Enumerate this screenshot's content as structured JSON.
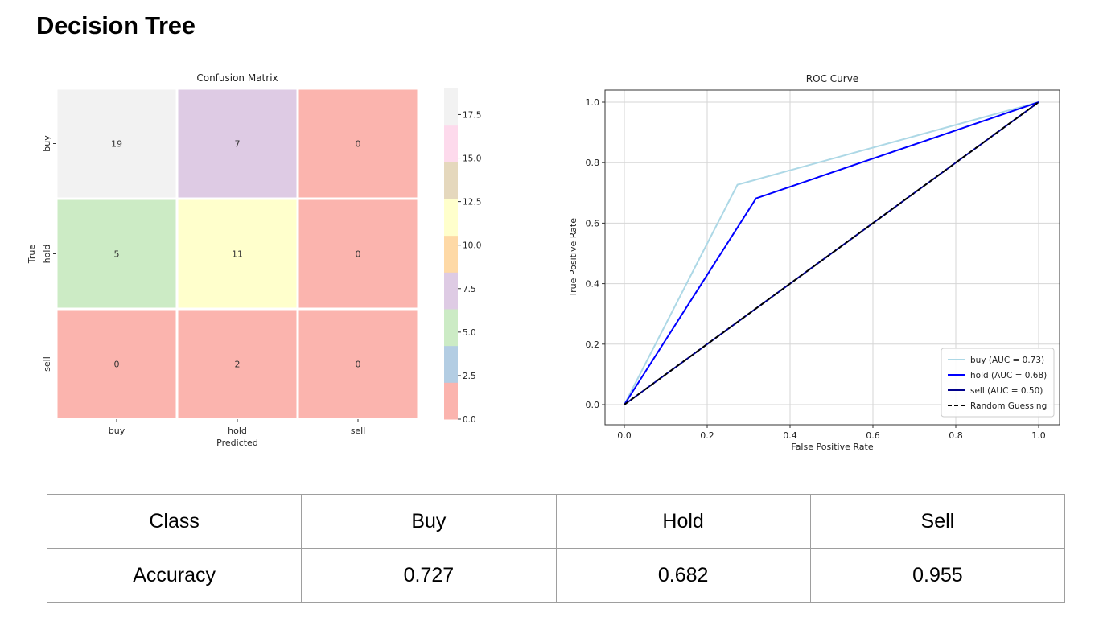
{
  "page": {
    "title": "Decision Tree"
  },
  "chart_data": [
    {
      "type": "heatmap",
      "title": "Confusion Matrix",
      "xlabel": "Predicted",
      "ylabel": "True",
      "x_categories": [
        "buy",
        "hold",
        "sell"
      ],
      "y_categories": [
        "buy",
        "hold",
        "sell"
      ],
      "values": [
        [
          19,
          7,
          0
        ],
        [
          5,
          11,
          0
        ],
        [
          0,
          2,
          0
        ]
      ],
      "colormap": "Pastel1",
      "cell_colors": [
        [
          "#f2f2f2",
          "#decbe4",
          "#fbb4ae"
        ],
        [
          "#ccebc5",
          "#ffffcc",
          "#fbb4ae"
        ],
        [
          "#fbb4ae",
          "#fbb4ae",
          "#fbb4ae"
        ]
      ],
      "colorbar": {
        "range": [
          0,
          19
        ],
        "ticks": [
          "0.0",
          "2.5",
          "5.0",
          "7.5",
          "10.0",
          "12.5",
          "15.0",
          "17.5"
        ],
        "colors": [
          "#fbb4ae",
          "#b3cde3",
          "#ccebc5",
          "#decbe4",
          "#fed9a6",
          "#ffffcc",
          "#e5d8bd",
          "#fddaec",
          "#f2f2f2"
        ]
      }
    },
    {
      "type": "line",
      "title": "ROC Curve",
      "xlabel": "False Positive Rate",
      "ylabel": "True Positive Rate",
      "xlim": [
        0.0,
        1.0
      ],
      "ylim": [
        0.0,
        1.0
      ],
      "xticks": [
        "0.0",
        "0.2",
        "0.4",
        "0.6",
        "0.8",
        "1.0"
      ],
      "yticks": [
        "0.0",
        "0.2",
        "0.4",
        "0.6",
        "0.8",
        "1.0"
      ],
      "grid": true,
      "legend_position": "lower-right",
      "series": [
        {
          "name": "buy (AUC = 0.73)",
          "color": "#add8e6",
          "dash": false,
          "points": [
            [
              0.0,
              0.0
            ],
            [
              0.273,
              0.727
            ],
            [
              1.0,
              1.0
            ]
          ]
        },
        {
          "name": "hold (AUC = 0.68)",
          "color": "#0000ff",
          "dash": false,
          "points": [
            [
              0.0,
              0.0
            ],
            [
              0.318,
              0.682
            ],
            [
              1.0,
              1.0
            ]
          ]
        },
        {
          "name": "sell (AUC = 0.50)",
          "color": "#00008b",
          "dash": false,
          "points": [
            [
              0.0,
              0.0
            ],
            [
              1.0,
              1.0
            ]
          ]
        },
        {
          "name": "Random Guessing",
          "color": "#000000",
          "dash": true,
          "points": [
            [
              0.0,
              0.0
            ],
            [
              1.0,
              1.0
            ]
          ]
        }
      ]
    }
  ],
  "table": {
    "header": [
      "Class",
      "Buy",
      "Hold",
      "Sell"
    ],
    "rows": [
      [
        "Accuracy",
        "0.727",
        "0.682",
        "0.955"
      ]
    ]
  }
}
